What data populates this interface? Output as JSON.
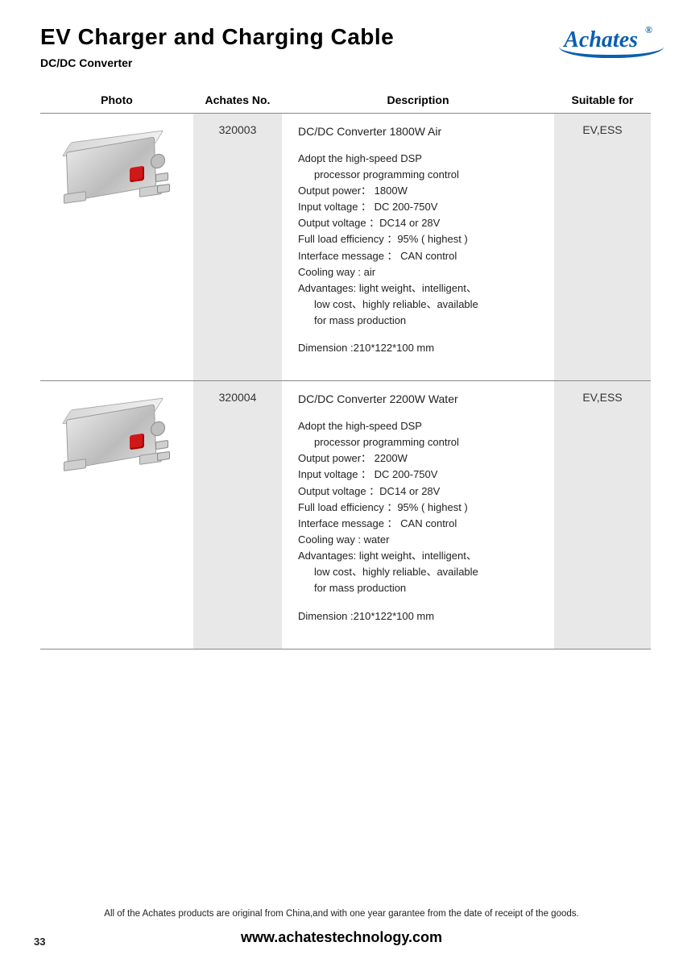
{
  "header": {
    "title": "EV Charger and Charging Cable",
    "subtitle": "DC/DC Converter",
    "brand": "Achates",
    "brand_color": "#0a5fb0"
  },
  "columns": {
    "photo": "Photo",
    "no": "Achates No.",
    "desc": "Description",
    "suit": "Suitable for"
  },
  "products": [
    {
      "no": "320003",
      "title": "DC/DC Converter 1800W Air",
      "lines": [
        "Adopt the high-speed DSP",
        "processor programming control",
        "Output power： 1800W",
        "Input voltage ： DC 200-750V",
        "Output voltage ：DC14 or 28V",
        "Full load efficiency ：95% ( highest )",
        "Interface message ： CAN control",
        "Cooling way : air",
        "Advantages: light weight、intelligent、",
        "low cost、highly reliable、available",
        "for mass production"
      ],
      "dimension": "Dimension :210*122*100 mm",
      "suitable": "EV,ESS"
    },
    {
      "no": "320004",
      "title": "DC/DC Converter 2200W Water",
      "lines": [
        "Adopt the high-speed DSP",
        "processor programming control",
        "Output power： 2200W",
        "Input voltage ： DC 200-750V",
        "Output voltage ：DC14 or 28V",
        "Full load efficiency ：95% ( highest )",
        "Interface message ： CAN control",
        "Cooling way : water",
        "Advantages: light weight、intelligent、",
        "low cost、highly reliable、available",
        "for mass production"
      ],
      "dimension": "Dimension :210*122*100 mm",
      "suitable": "EV,ESS"
    }
  ],
  "footer": {
    "note": "All of the Achates products are original from China,and with one year garantee from the date of receipt of the goods.",
    "url": "www.achatestechnology.com",
    "page": "33"
  },
  "style": {
    "shade_bg": "#e8e8e8",
    "rule_color": "#888888",
    "title_fontsize": 28,
    "body_fontsize": 13
  }
}
